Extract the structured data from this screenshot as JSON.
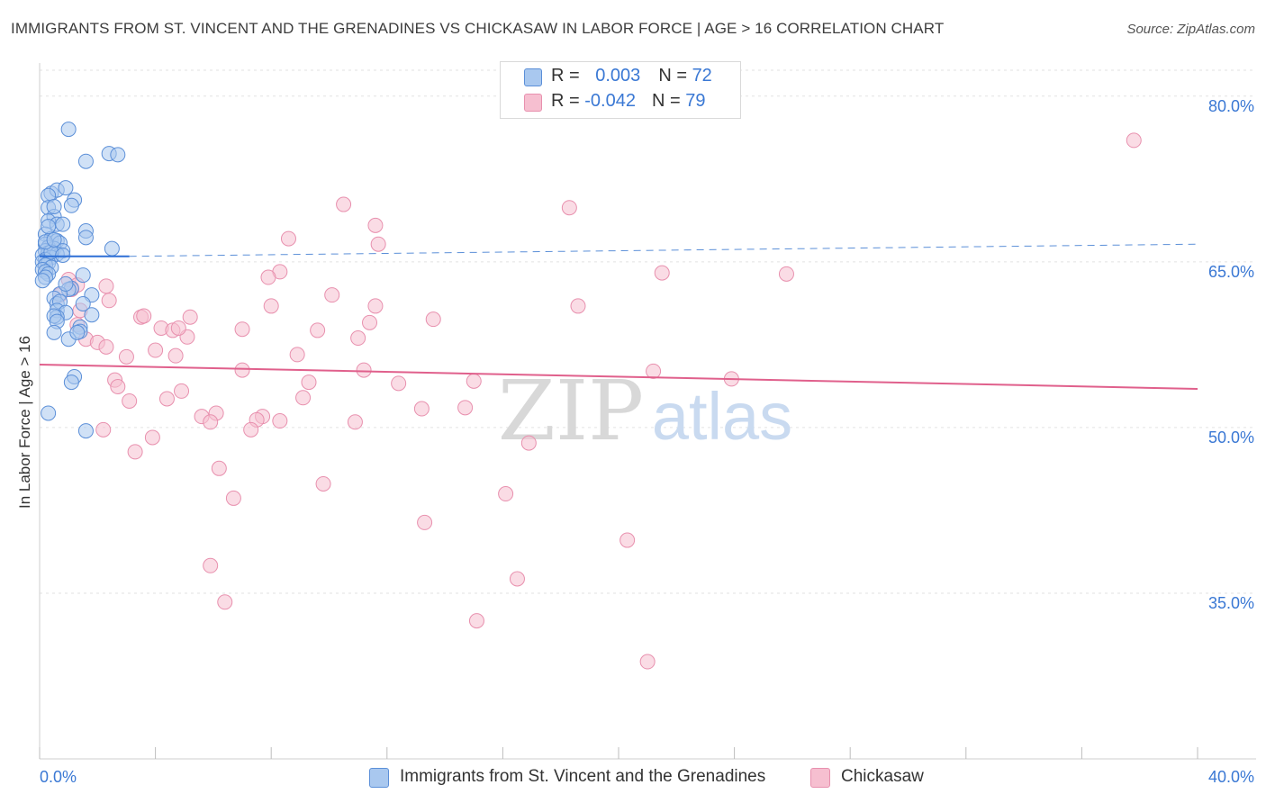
{
  "header": {
    "title": "IMMIGRANTS FROM ST. VINCENT AND THE GRENADINES VS CHICKASAW IN LABOR FORCE | AGE > 16 CORRELATION CHART",
    "source": "Source: ZipAtlas.com"
  },
  "legend": {
    "rows": [
      {
        "r_label": "R = ",
        "r_value": "0.003",
        "n_label": "N = ",
        "n_value": "72"
      },
      {
        "r_label": "R = ",
        "r_value": "-0.042",
        "n_label": "N = ",
        "n_value": "79"
      }
    ]
  },
  "bottom_legend": {
    "series1": "Immigrants from St. Vincent and the Grenadines",
    "series2": "Chickasaw"
  },
  "watermark": {
    "part1": "ZIP",
    "part2": "atlas"
  },
  "colors": {
    "blue_fill": "#a9c8ef",
    "blue_stroke": "#5b8fd8",
    "blue_line": "#2d6fd6",
    "pink_fill": "#f6bfd0",
    "pink_stroke": "#e890ae",
    "pink_line": "#e0608c",
    "tick_label": "#3a78d4",
    "grid": "#e2e2e2"
  },
  "chart_data": {
    "type": "scatter",
    "title": "IMMIGRANTS FROM ST. VINCENT AND THE GRENADINES VS CHICKASAW IN LABOR FORCE | AGE > 16 CORRELATION CHART",
    "xlabel": "",
    "ylabel": "In Labor Force | Age > 16",
    "xlim": [
      0,
      40
    ],
    "ylim": [
      20,
      83
    ],
    "x_tick_labels": [
      "0.0%",
      "40.0%"
    ],
    "y_ticks": [
      35,
      50,
      65,
      80
    ],
    "y_tick_labels": [
      "35.0%",
      "50.0%",
      "65.0%",
      "80.0%"
    ],
    "grid": true,
    "series": [
      {
        "name": "Immigrants from St. Vincent and the Grenadines",
        "color": "blue",
        "r": 0.003,
        "n": 72,
        "trend": {
          "x": [
            0.0,
            3.1
          ],
          "y": [
            65.5,
            65.5
          ],
          "dashed_extension": {
            "x": [
              3.1,
              40
            ],
            "y": [
              65.5,
              66.6
            ]
          }
        },
        "points": [
          [
            1.0,
            77.0
          ],
          [
            2.4,
            74.8
          ],
          [
            2.7,
            74.7
          ],
          [
            1.6,
            74.1
          ],
          [
            0.4,
            71.2
          ],
          [
            0.6,
            71.5
          ],
          [
            0.9,
            71.7
          ],
          [
            0.3,
            71.0
          ],
          [
            1.2,
            70.6
          ],
          [
            1.1,
            70.1
          ],
          [
            0.3,
            69.9
          ],
          [
            0.5,
            69.1
          ],
          [
            0.3,
            68.7
          ],
          [
            0.6,
            68.4
          ],
          [
            0.8,
            68.4
          ],
          [
            1.6,
            67.8
          ],
          [
            0.2,
            67.5
          ],
          [
            1.6,
            67.2
          ],
          [
            0.4,
            67.1
          ],
          [
            0.6,
            66.9
          ],
          [
            0.7,
            66.7
          ],
          [
            0.2,
            66.6
          ],
          [
            0.3,
            66.3
          ],
          [
            0.5,
            66.2
          ],
          [
            2.5,
            66.2
          ],
          [
            0.2,
            66.0
          ],
          [
            0.8,
            66.0
          ],
          [
            0.3,
            65.8
          ],
          [
            0.6,
            65.7
          ],
          [
            0.1,
            65.6
          ],
          [
            0.4,
            65.4
          ],
          [
            0.2,
            65.2
          ],
          [
            0.1,
            65.0
          ],
          [
            0.3,
            64.9
          ],
          [
            0.2,
            64.7
          ],
          [
            0.4,
            64.5
          ],
          [
            0.1,
            64.3
          ],
          [
            0.2,
            64.1
          ],
          [
            0.3,
            63.9
          ],
          [
            1.5,
            63.8
          ],
          [
            0.2,
            63.6
          ],
          [
            0.1,
            63.3
          ],
          [
            1.1,
            62.6
          ],
          [
            1.0,
            62.5
          ],
          [
            0.7,
            62.1
          ],
          [
            1.8,
            62.0
          ],
          [
            0.5,
            61.7
          ],
          [
            0.6,
            61.2
          ],
          [
            0.7,
            61.4
          ],
          [
            1.5,
            61.2
          ],
          [
            0.6,
            60.6
          ],
          [
            0.9,
            60.4
          ],
          [
            0.6,
            60.0
          ],
          [
            1.8,
            60.2
          ],
          [
            0.5,
            60.1
          ],
          [
            0.6,
            59.6
          ],
          [
            1.4,
            59.1
          ],
          [
            1.4,
            58.7
          ],
          [
            0.5,
            58.6
          ],
          [
            1.0,
            58.0
          ],
          [
            1.3,
            58.6
          ],
          [
            1.2,
            54.6
          ],
          [
            1.1,
            54.1
          ],
          [
            0.3,
            51.3
          ],
          [
            1.6,
            49.7
          ],
          [
            0.9,
            63.0
          ],
          [
            0.4,
            65.9
          ],
          [
            0.2,
            66.8
          ],
          [
            0.3,
            68.2
          ],
          [
            0.5,
            70.0
          ],
          [
            0.8,
            65.6
          ],
          [
            0.5,
            67.0
          ]
        ]
      },
      {
        "name": "Chickasaw",
        "color": "pink",
        "r": -0.042,
        "n": 79,
        "trend": {
          "x": [
            0,
            40
          ],
          "y": [
            55.7,
            53.5
          ]
        },
        "points": [
          [
            37.8,
            76.0
          ],
          [
            10.5,
            70.2
          ],
          [
            18.3,
            69.9
          ],
          [
            11.6,
            68.3
          ],
          [
            8.6,
            67.1
          ],
          [
            11.7,
            66.6
          ],
          [
            21.5,
            64.0
          ],
          [
            25.8,
            63.9
          ],
          [
            8.3,
            64.1
          ],
          [
            7.9,
            63.6
          ],
          [
            1.0,
            63.4
          ],
          [
            1.3,
            62.9
          ],
          [
            1.1,
            62.5
          ],
          [
            0.7,
            62.0
          ],
          [
            2.4,
            61.5
          ],
          [
            10.1,
            62.0
          ],
          [
            8.0,
            61.0
          ],
          [
            11.6,
            61.0
          ],
          [
            18.6,
            61.0
          ],
          [
            1.4,
            60.6
          ],
          [
            3.5,
            60.0
          ],
          [
            3.6,
            60.1
          ],
          [
            5.2,
            60.0
          ],
          [
            11.4,
            59.5
          ],
          [
            13.6,
            59.8
          ],
          [
            1.3,
            59.3
          ],
          [
            4.2,
            59.0
          ],
          [
            4.6,
            58.8
          ],
          [
            7.0,
            58.9
          ],
          [
            9.6,
            58.8
          ],
          [
            5.1,
            58.2
          ],
          [
            11.0,
            58.1
          ],
          [
            1.6,
            58.0
          ],
          [
            2.0,
            57.7
          ],
          [
            2.3,
            57.3
          ],
          [
            4.0,
            57.0
          ],
          [
            3.0,
            56.4
          ],
          [
            4.7,
            56.5
          ],
          [
            8.9,
            56.6
          ],
          [
            7.0,
            55.2
          ],
          [
            11.2,
            55.2
          ],
          [
            21.2,
            55.1
          ],
          [
            2.6,
            54.3
          ],
          [
            9.3,
            54.1
          ],
          [
            12.4,
            54.0
          ],
          [
            15.0,
            54.2
          ],
          [
            23.9,
            54.4
          ],
          [
            2.7,
            53.7
          ],
          [
            4.9,
            53.3
          ],
          [
            3.1,
            52.4
          ],
          [
            4.4,
            52.6
          ],
          [
            9.1,
            52.7
          ],
          [
            13.2,
            51.7
          ],
          [
            14.7,
            51.8
          ],
          [
            6.1,
            51.3
          ],
          [
            5.6,
            51.0
          ],
          [
            7.7,
            51.0
          ],
          [
            7.5,
            50.7
          ],
          [
            8.3,
            50.6
          ],
          [
            5.9,
            50.5
          ],
          [
            10.9,
            50.5
          ],
          [
            2.2,
            49.8
          ],
          [
            7.3,
            49.8
          ],
          [
            3.9,
            49.1
          ],
          [
            16.9,
            48.6
          ],
          [
            3.3,
            47.8
          ],
          [
            6.2,
            46.3
          ],
          [
            9.8,
            44.9
          ],
          [
            16.1,
            44.0
          ],
          [
            6.7,
            43.6
          ],
          [
            13.3,
            41.4
          ],
          [
            20.3,
            39.8
          ],
          [
            5.9,
            37.5
          ],
          [
            16.5,
            36.3
          ],
          [
            6.4,
            34.2
          ],
          [
            15.1,
            32.5
          ],
          [
            21.0,
            28.8
          ],
          [
            4.8,
            59.0
          ],
          [
            2.3,
            62.8
          ]
        ]
      }
    ]
  }
}
